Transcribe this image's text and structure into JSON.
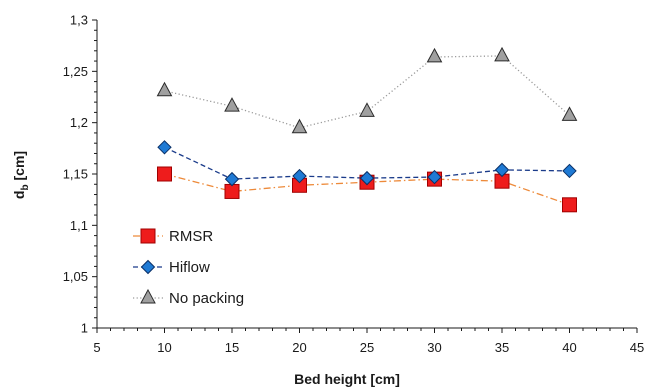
{
  "chart_data": {
    "type": "line",
    "xlabel": "Bed height [cm]",
    "ylabel_main": "d",
    "ylabel_sub": "b",
    "ylabel_unit": " [cm]",
    "xlim": [
      5,
      45
    ],
    "ylim": [
      1,
      1.3
    ],
    "xticks": [
      5,
      10,
      15,
      20,
      25,
      30,
      35,
      40,
      45
    ],
    "yticks": [
      1,
      1.05,
      1.1,
      1.15,
      1.2,
      1.25,
      1.3
    ],
    "ytick_labels": [
      "1",
      "1,05",
      "1,1",
      "1,15",
      "1,2",
      "1,25",
      "1,3"
    ],
    "grid": false,
    "legend_position": "bottom-left",
    "x": [
      10,
      15,
      20,
      25,
      30,
      35,
      40
    ],
    "series": [
      {
        "name": "RMSR",
        "values": [
          1.15,
          1.133,
          1.139,
          1.142,
          1.145,
          1.143,
          1.12
        ],
        "marker": "square",
        "marker_color": "#ee1c1c",
        "marker_stroke": "#a00000",
        "line_color": "#ed8a3a",
        "line_style": "dashdot"
      },
      {
        "name": "Hiflow",
        "values": [
          1.176,
          1.145,
          1.148,
          1.146,
          1.147,
          1.154,
          1.153
        ],
        "marker": "diamond",
        "marker_color": "#1f7ad4",
        "marker_stroke": "#0a2f66",
        "line_color": "#1a3b8a",
        "line_style": "dashed"
      },
      {
        "name": "No packing",
        "values": [
          1.231,
          1.216,
          1.195,
          1.211,
          1.264,
          1.265,
          1.207
        ],
        "marker": "triangle",
        "marker_color": "#a0a0a0",
        "marker_stroke": "#2a2a2a",
        "line_color": "#9a9a9a",
        "line_style": "dotted"
      }
    ]
  }
}
